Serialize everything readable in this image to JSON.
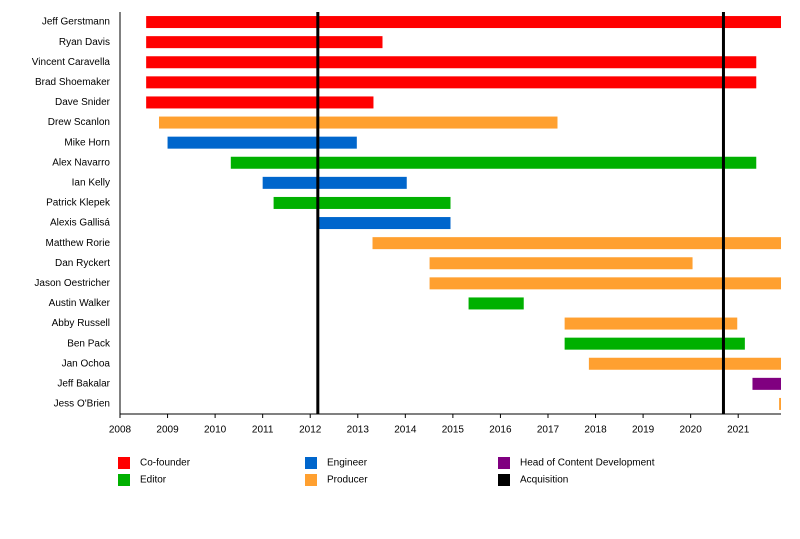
{
  "chart_data": {
    "type": "timeline",
    "categories": [
      "Jeff Gerstmann",
      "Ryan Davis",
      "Vincent Caravella",
      "Brad Shoemaker",
      "Dave Snider",
      "Drew Scanlon",
      "Mike Horn",
      "Alex Navarro",
      "Ian Kelly",
      "Patrick Klepek",
      "Alexis Gallisá",
      "Matthew Rorie",
      "Dan Ryckert",
      "Jason Oestricher",
      "Austin Walker",
      "Abby Russell",
      "Ben Pack",
      "Jan Ochoa",
      "Jeff Bakalar",
      "Jess O'Brien"
    ],
    "series": [
      {
        "name": "Co-founder",
        "color": "#ff0000",
        "values": [
          [
            2008.55,
            2021.9
          ],
          [
            2008.55,
            2013.52
          ],
          [
            2008.55,
            2021.38
          ],
          [
            2008.55,
            2021.38
          ],
          [
            2008.55,
            2013.33
          ],
          null,
          null,
          null,
          null,
          null,
          null,
          null,
          null,
          null,
          null,
          null,
          null,
          null,
          null,
          null
        ]
      },
      {
        "name": "Editor",
        "color": "#00b000",
        "values": [
          null,
          null,
          null,
          null,
          null,
          null,
          null,
          [
            2010.33,
            2021.38
          ],
          null,
          [
            2011.23,
            2014.95
          ],
          null,
          null,
          null,
          null,
          [
            2015.33,
            2016.49
          ],
          null,
          [
            2017.35,
            2021.14
          ],
          null,
          null,
          null
        ]
      },
      {
        "name": "Engineer",
        "color": "#0066cc",
        "values": [
          null,
          null,
          null,
          null,
          null,
          null,
          [
            2009.0,
            2012.98
          ],
          null,
          [
            2011.0,
            2014.03
          ],
          null,
          [
            2012.16,
            2014.95
          ],
          null,
          null,
          null,
          null,
          null,
          null,
          null,
          null,
          null
        ]
      },
      {
        "name": "Producer",
        "color": "#ffa030",
        "values": [
          null,
          null,
          null,
          null,
          null,
          [
            2008.82,
            2017.2
          ],
          null,
          null,
          null,
          null,
          null,
          [
            2013.31,
            2021.9
          ],
          [
            2014.51,
            2020.04
          ],
          [
            2014.51,
            2021.9
          ],
          null,
          [
            2017.35,
            2020.98
          ],
          null,
          [
            2017.86,
            2021.9
          ],
          null,
          [
            2021.86,
            2021.9
          ]
        ]
      },
      {
        "name": "Head of Content Development",
        "color": "#800080",
        "values": [
          null,
          null,
          null,
          null,
          null,
          null,
          null,
          null,
          null,
          null,
          null,
          null,
          null,
          null,
          null,
          null,
          null,
          null,
          [
            2021.3,
            2021.9
          ],
          null
        ]
      }
    ],
    "markers": {
      "name": "Acquisition",
      "color": "#000000",
      "x": [
        2012.16,
        2020.69
      ]
    },
    "xlim": [
      2008,
      2021.9
    ],
    "xticks": [
      2008,
      2009,
      2010,
      2011,
      2012,
      2013,
      2014,
      2015,
      2016,
      2017,
      2018,
      2019,
      2020,
      2021
    ]
  }
}
